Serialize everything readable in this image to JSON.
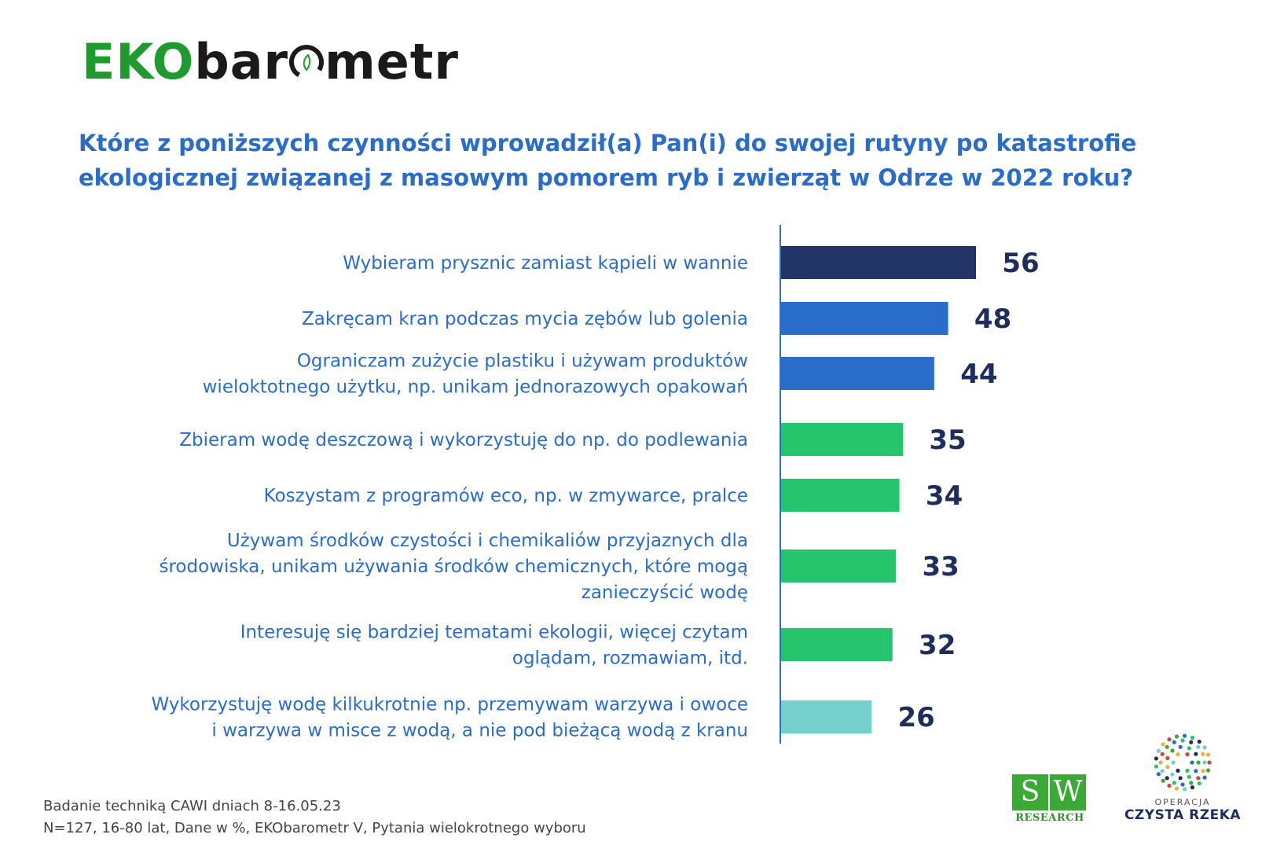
{
  "logo": {
    "part1": "EKO",
    "part2": "bar",
    "part3": "metr"
  },
  "question": "Które z poniższych czynności wprowadził(a) Pan(i) do swojej rutyny po katastrofie ekologicznej związanej z masowym pomorem ryb i zwierząt w Odrze w 2022 roku?",
  "chart_data": {
    "type": "bar",
    "orientation": "horizontal",
    "title": "Które z poniższych czynności wprowadził(a) Pan(i) do swojej rutyny po katastrofie ekologicznej związanej z masowym pomorem ryb i zwierząt w Odrze w 2022 roku?",
    "categories": [
      [
        "Wybieram prysznic zamiast kąpieli w wannie"
      ],
      [
        "Zakręcam kran podczas mycia zębów lub golenia"
      ],
      [
        "Ograniczam zużycie plastiku i używam produktów",
        "wieloktotnego użytku, np. unikam jednorazowych opakowań"
      ],
      [
        "Zbieram wodę deszczową i wykorzystuję do np. do podlewania"
      ],
      [
        "Koszystam z programów eco, np. w zmywarce, pralce"
      ],
      [
        "Używam środków czystości i chemikaliów przyjaznych dla",
        "środowiska, unikam używania środków chemicznych, które mogą",
        "zanieczyścić wodę"
      ],
      [
        "Interesuję się bardziej tematami ekologii, więcej czytam",
        "oglądam, rozmawiam, itd."
      ],
      [
        "Wykorzystuję wodę kilkukrotnie np. przemywam warzywa i owoce",
        "i warzywa w misce z wodą, a nie pod bieżącą wodą z kranu"
      ]
    ],
    "values": [
      56,
      48,
      44,
      35,
      34,
      33,
      32,
      26
    ],
    "bar_colors": [
      "#233567",
      "#2a6cc9",
      "#2a6cc9",
      "#27c46e",
      "#27c46e",
      "#27c46e",
      "#27c46e",
      "#74cfcd"
    ],
    "value_color": "#1f2d5c",
    "label_color": "#2a6cc9",
    "axis_color": "#2a6cc9",
    "xlim": [
      0,
      56
    ]
  },
  "footnote": {
    "line1": "Badanie techniką CAWI dniach 8-16.05.23",
    "line2": "N=127, 16-80 lat, Dane w %, EKObarometr V, Pytania wielokrotnego wyboru"
  },
  "sw_logo": {
    "s": "S",
    "w": "W",
    "research": "RESEARCH"
  },
  "czysta_logo": {
    "top": "OPERACJA",
    "bottom": "CZYSTA RZEKA"
  }
}
